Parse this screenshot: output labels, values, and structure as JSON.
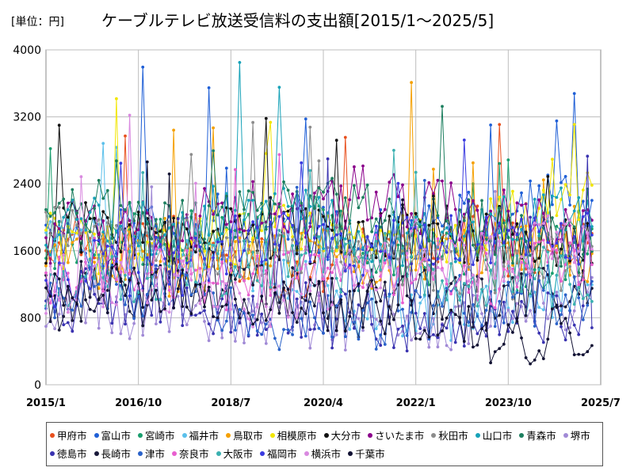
{
  "chart_data": {
    "type": "line",
    "title": "ケーブルテレビ放送受信料の支出額[2015/1～2025/5]",
    "unit_label": "[単位：円]",
    "xlabel": "",
    "ylabel": "",
    "ylim": [
      0,
      4000
    ],
    "y_ticks": [
      "0",
      "800",
      "1600",
      "2400",
      "3200",
      "4000"
    ],
    "x_ticks": [
      "2015/1",
      "2016/10",
      "2018/7",
      "2020/4",
      "2022/1",
      "2023/10",
      "2025/7"
    ],
    "grid": true,
    "legend_position": "bottom",
    "series": [
      {
        "name": "甲府市",
        "color": "#e8501e"
      },
      {
        "name": "富山市",
        "color": "#1f5fd6"
      },
      {
        "name": "宮崎市",
        "color": "#1a9e6e"
      },
      {
        "name": "福井市",
        "color": "#5bc0eb"
      },
      {
        "name": "鳥取市",
        "color": "#f5a000"
      },
      {
        "name": "相模原市",
        "color": "#f2e600"
      },
      {
        "name": "大分市",
        "color": "#111111"
      },
      {
        "name": "さいたま市",
        "color": "#8b008b"
      },
      {
        "name": "秋田市",
        "color": "#8c8c8c"
      },
      {
        "name": "山口市",
        "color": "#17a2b8"
      },
      {
        "name": "青森市",
        "color": "#1d7f5f"
      },
      {
        "name": "堺市",
        "color": "#a18ad6"
      },
      {
        "name": "徳島市",
        "color": "#3a33b0"
      },
      {
        "name": "長崎市",
        "color": "#1a1a3a"
      },
      {
        "name": "津市",
        "color": "#2a62c9"
      },
      {
        "name": "奈良市",
        "color": "#e85fcf"
      },
      {
        "name": "大阪市",
        "color": "#3ab0b0"
      },
      {
        "name": "福岡市",
        "color": "#3a3ae0"
      },
      {
        "name": "横浜市",
        "color": "#d98ae0"
      },
      {
        "name": "千葉市",
        "color": "#111133"
      }
    ]
  }
}
